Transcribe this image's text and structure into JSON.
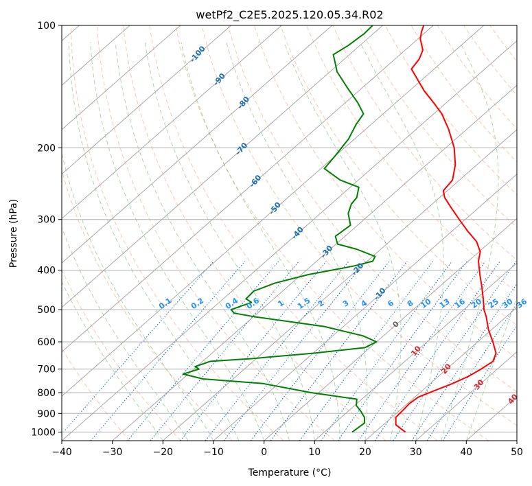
{
  "chart_data": {
    "type": "skew-t",
    "title": "wetPf2_C2E5.2025.120.05.34.R02",
    "xlabel": "Temperature (°C)",
    "ylabel": "Pressure (hPa)",
    "xlim": [
      -40,
      50
    ],
    "ylim": [
      1050,
      100
    ],
    "y_scale": "log",
    "grid": true,
    "x_ticks": [
      "−40",
      "−30",
      "−20",
      "−10",
      "0",
      "10",
      "20",
      "30",
      "40",
      "50"
    ],
    "y_ticks": [
      "100",
      "200",
      "300",
      "400",
      "500",
      "600",
      "700",
      "800",
      "900",
      "1000"
    ],
    "isotherm_labels": [
      "-100",
      "-90",
      "-80",
      "-70",
      "-60",
      "-50",
      "-40",
      "-30",
      "-20",
      "-10",
      "0",
      "10",
      "20",
      "30",
      "40"
    ],
    "mixing_ratio_labels": [
      "0.1",
      "0.2",
      "0.4",
      "0.6",
      "1",
      "1.5",
      "2",
      "3",
      "4",
      "6",
      "8",
      "10",
      "13",
      "16",
      "20",
      "25",
      "30",
      "36"
    ],
    "series": [
      {
        "name": "Temperature",
        "color": "#ff0000",
        "points": [
          [
            1000,
            26.0
          ],
          [
            960,
            22.5
          ],
          [
            920,
            20.8
          ],
          [
            880,
            20.6
          ],
          [
            850,
            20.4
          ],
          [
            820,
            20.7
          ],
          [
            790,
            22.5
          ],
          [
            760,
            24.4
          ],
          [
            730,
            25.9
          ],
          [
            700,
            26.8
          ],
          [
            670,
            27.4
          ],
          [
            640,
            26.2
          ],
          [
            600,
            23.0
          ],
          [
            560,
            19.4
          ],
          [
            520,
            16.0
          ],
          [
            500,
            14.0
          ],
          [
            470,
            11.4
          ],
          [
            440,
            8.5
          ],
          [
            410,
            5.3
          ],
          [
            380,
            2.0
          ],
          [
            360,
            0.2
          ],
          [
            340,
            -2.8
          ],
          [
            320,
            -7.0
          ],
          [
            300,
            -11.2
          ],
          [
            280,
            -15.6
          ],
          [
            265,
            -19.0
          ],
          [
            255,
            -20.8
          ],
          [
            240,
            -21.4
          ],
          [
            220,
            -24.3
          ],
          [
            200,
            -28.3
          ],
          [
            180,
            -33.6
          ],
          [
            165,
            -38.4
          ],
          [
            155,
            -42.5
          ],
          [
            145,
            -47.0
          ],
          [
            135,
            -51.3
          ],
          [
            128,
            -54.5
          ],
          [
            121,
            -55.2
          ],
          [
            115,
            -56.5
          ],
          [
            108,
            -59.5
          ],
          [
            104,
            -60.8
          ],
          [
            100,
            -61.9
          ]
        ]
      },
      {
        "name": "Dewpoint",
        "color": "#008000",
        "points": [
          [
            1000,
            15.5
          ],
          [
            950,
            15.9
          ],
          [
            920,
            14.6
          ],
          [
            890,
            12.6
          ],
          [
            860,
            10.3
          ],
          [
            830,
            9.0
          ],
          [
            800,
            -1.5
          ],
          [
            760,
            -13.0
          ],
          [
            740,
            -26.0
          ],
          [
            720,
            -31.0
          ],
          [
            700,
            -29.0
          ],
          [
            690,
            -30.3
          ],
          [
            670,
            -28.5
          ],
          [
            660,
            -21.0
          ],
          [
            640,
            -10.0
          ],
          [
            620,
            -1.0
          ],
          [
            600,
            0.0
          ],
          [
            580,
            -4.0
          ],
          [
            550,
            -13.8
          ],
          [
            520,
            -30.0
          ],
          [
            510,
            -34.6
          ],
          [
            500,
            -36.0
          ],
          [
            480,
            -33.6
          ],
          [
            470,
            -35.5
          ],
          [
            450,
            -35.7
          ],
          [
            430,
            -33.3
          ],
          [
            410,
            -28.6
          ],
          [
            390,
            -21.4
          ],
          [
            380,
            -18.9
          ],
          [
            370,
            -19.5
          ],
          [
            355,
            -24.8
          ],
          [
            345,
            -29.7
          ],
          [
            330,
            -31.9
          ],
          [
            310,
            -31.4
          ],
          [
            290,
            -34.5
          ],
          [
            275,
            -36.0
          ],
          [
            265,
            -36.4
          ],
          [
            250,
            -38.3
          ],
          [
            240,
            -43.6
          ],
          [
            225,
            -49.3
          ],
          [
            210,
            -50.0
          ],
          [
            190,
            -51.2
          ],
          [
            175,
            -53.0
          ],
          [
            165,
            -53.9
          ],
          [
            155,
            -57.5
          ],
          [
            142,
            -63.1
          ],
          [
            130,
            -68.6
          ],
          [
            123,
            -71.2
          ],
          [
            118,
            -73.2
          ],
          [
            112,
            -72.3
          ],
          [
            105,
            -71.8
          ],
          [
            100,
            -72.0
          ]
        ]
      }
    ]
  }
}
